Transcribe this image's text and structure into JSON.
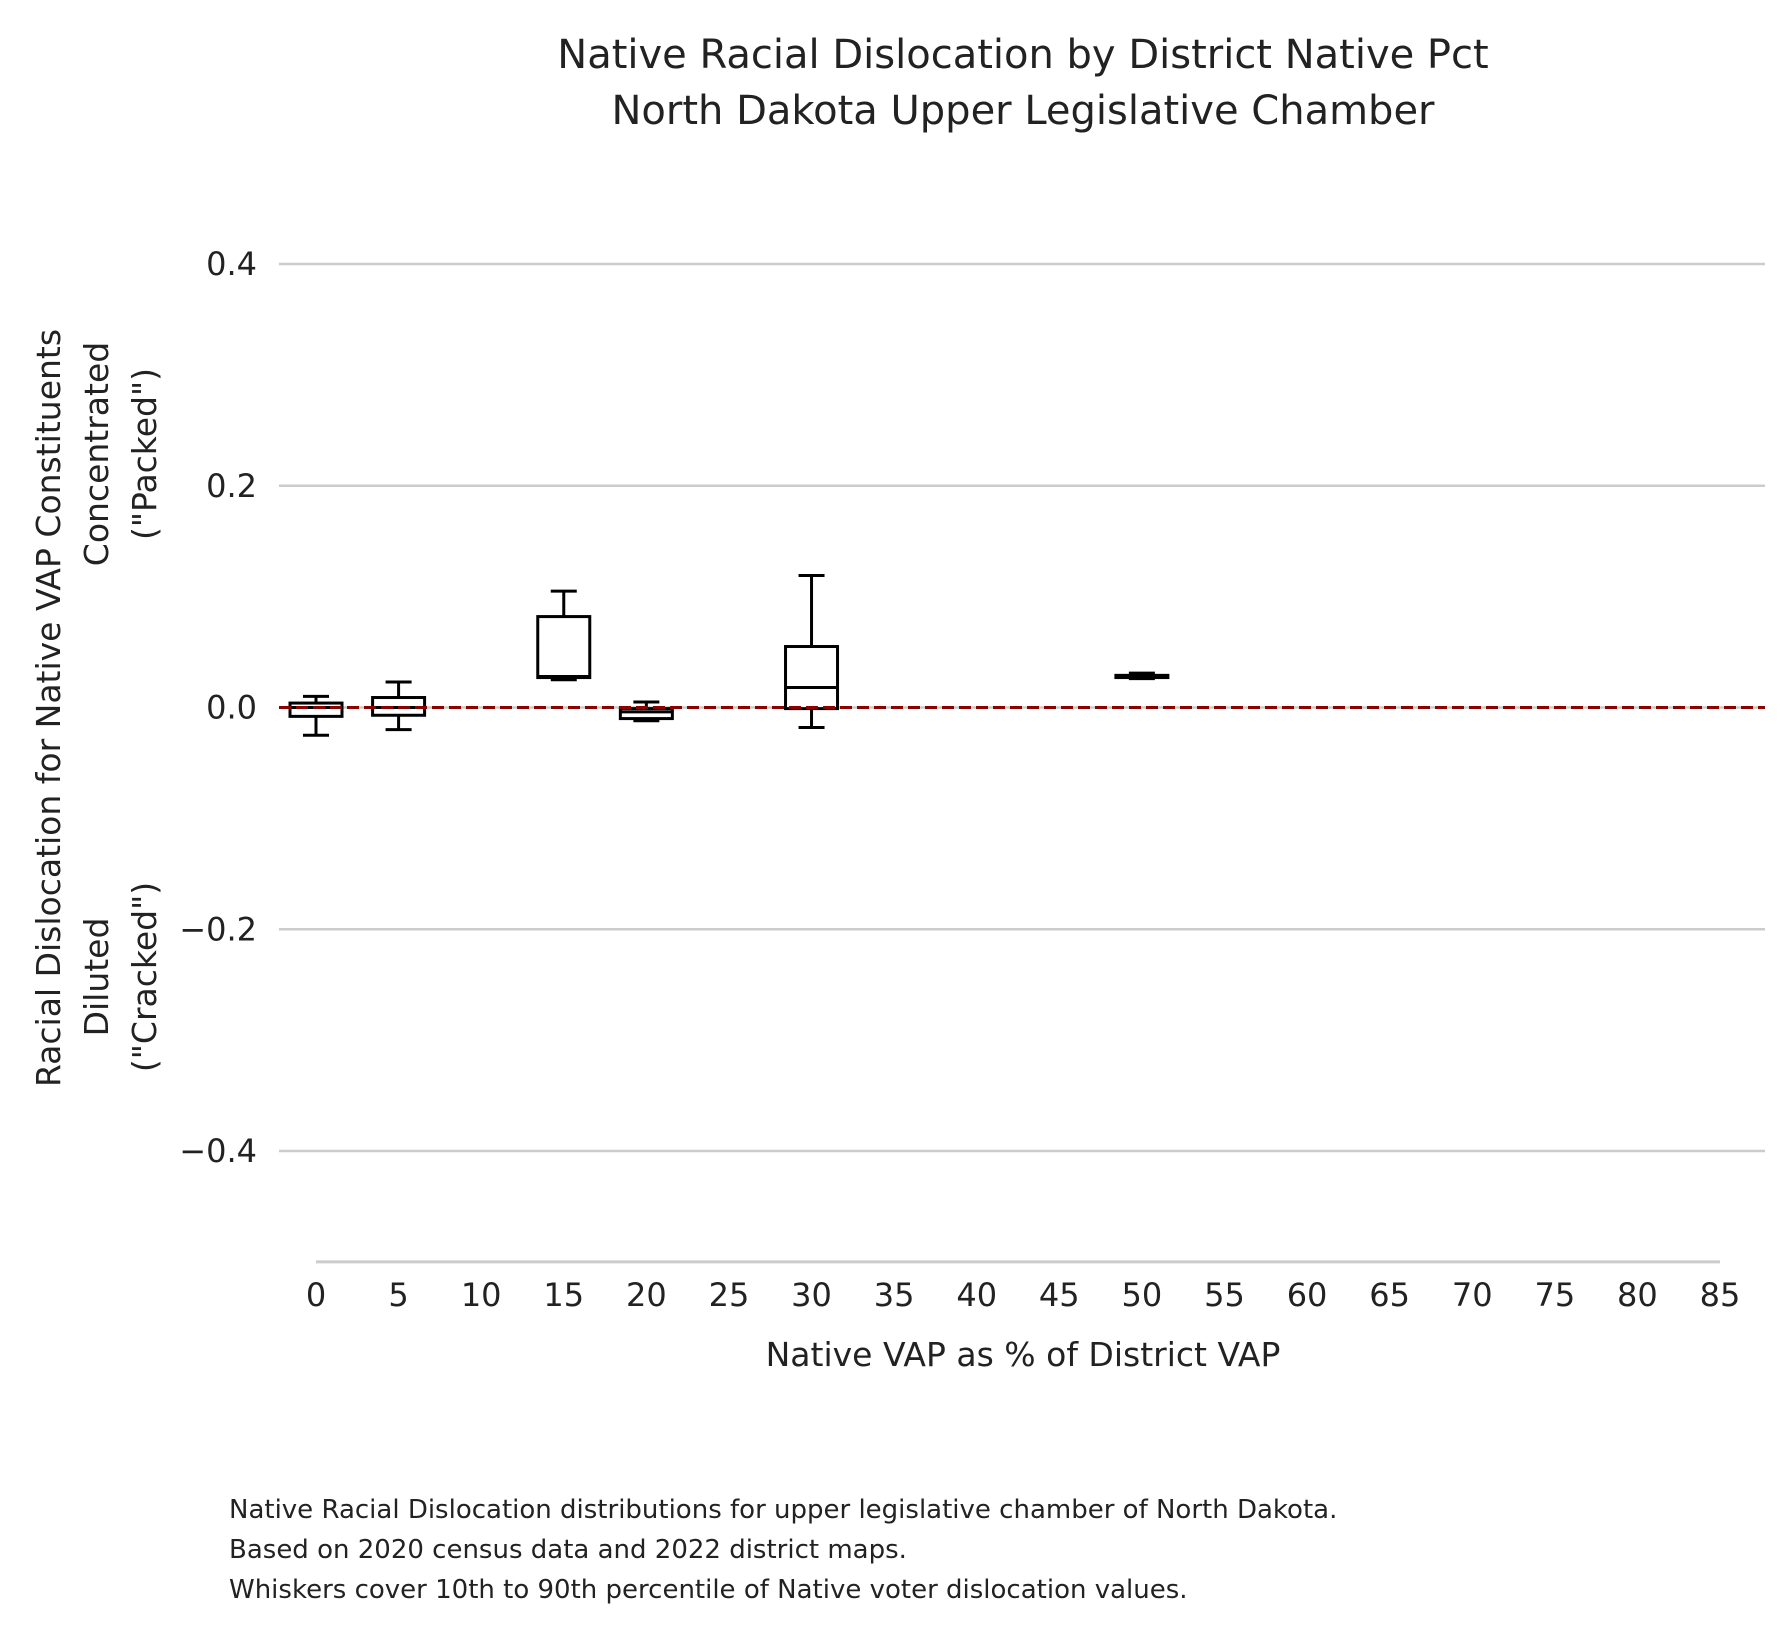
{
  "chart_data": {
    "type": "box",
    "title": "Native Racial Dislocation by District Native Pct",
    "subtitle": "North Dakota Upper Legislative Chamber",
    "xlabel": "Native VAP as % of District VAP",
    "ylabel": {
      "main": "Racial Dislocation for Native VAP Constituents",
      "upper": [
        "Concentrated",
        "(\"Packed\")"
      ],
      "lower": [
        "Diluted",
        "(\"Cracked\")"
      ]
    },
    "xlim": [
      0,
      85
    ],
    "ylim": [
      -0.5,
      0.4
    ],
    "x_ticks": [
      0,
      5,
      10,
      15,
      20,
      25,
      30,
      35,
      40,
      45,
      50,
      55,
      60,
      65,
      70,
      75,
      80,
      85
    ],
    "x_tick_labels": [
      "0",
      "5",
      "10",
      "15",
      "20",
      "25",
      "30",
      "35",
      "40",
      "45",
      "50",
      "55",
      "60",
      "65",
      "70",
      "75",
      "80",
      "85"
    ],
    "y_ticks": [
      0.4,
      0.2,
      0.0,
      -0.2,
      -0.4
    ],
    "y_tick_labels": [
      "0.4",
      "0.2",
      "0.0",
      "−0.2",
      "−0.4"
    ],
    "grid": true,
    "reference_line": {
      "y": 0.0,
      "style": "dashed",
      "color": "#8b0000"
    },
    "boxes": [
      {
        "x": 0,
        "whisker_low": -0.025,
        "q1": -0.008,
        "median": 0.0,
        "q3": 0.004,
        "whisker_high": 0.01
      },
      {
        "x": 5,
        "whisker_low": -0.02,
        "q1": -0.007,
        "median": 0.0,
        "q3": 0.009,
        "whisker_high": 0.023
      },
      {
        "x": 15,
        "whisker_low": 0.025,
        "q1": 0.027,
        "median": 0.028,
        "q3": 0.082,
        "whisker_high": 0.105
      },
      {
        "x": 20,
        "whisker_low": -0.012,
        "q1": -0.01,
        "median": -0.004,
        "q3": -0.001,
        "whisker_high": 0.005
      },
      {
        "x": 30,
        "whisker_low": -0.018,
        "q1": -0.001,
        "median": 0.018,
        "q3": 0.055,
        "whisker_high": 0.119
      },
      {
        "x": 50,
        "whisker_low": 0.026,
        "q1": 0.027,
        "median": 0.028,
        "q3": 0.029,
        "whisker_high": 0.031
      }
    ],
    "caption": [
      "Native Racial Dislocation distributions for upper legislative chamber of North Dakota.",
      "Based on 2020 census data and 2022 district maps.",
      "Whiskers cover 10th to 90th percentile of Native voter dislocation values."
    ]
  }
}
